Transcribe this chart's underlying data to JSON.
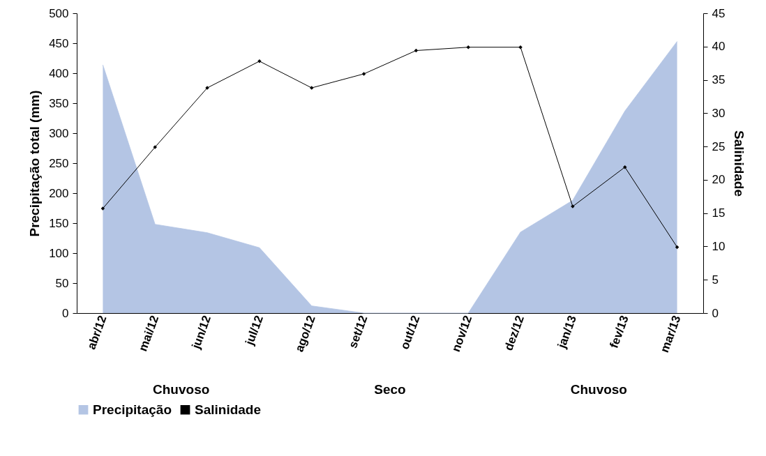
{
  "chart_data": {
    "type": "area",
    "xlabel": null,
    "ylabel": "Precipitação total  (mm)",
    "y2label": "Salinidade",
    "categories": [
      "abr/12",
      "mai/12",
      "jun/12",
      "jul/12",
      "ago/12",
      "set/12",
      "out/12",
      "nov/12",
      "dez/12",
      "jan/13",
      "fev/13",
      "mar/13"
    ],
    "series": [
      {
        "name": "Precipitação",
        "color": "#b4c5e4",
        "values": [
          414,
          148,
          134,
          109,
          12,
          0,
          0,
          0,
          135,
          188,
          337,
          453
        ]
      },
      {
        "name": "Salinidade",
        "type": "line",
        "axis": "y2",
        "color": "#000000",
        "marker": "diamond",
        "values": [
          15.7,
          24.9,
          33.8,
          37.8,
          33.8,
          35.9,
          39.4,
          39.9,
          39.9,
          16,
          21.9,
          9.9
        ]
      }
    ],
    "ylim": [
      0,
      500
    ],
    "yticks": [
      0,
      50,
      100,
      150,
      200,
      250,
      300,
      350,
      400,
      450,
      500
    ],
    "y2lim": [
      0,
      45
    ],
    "y2ticks": [
      0,
      5,
      10,
      15,
      20,
      25,
      30,
      35,
      40,
      45
    ],
    "annotations": [
      "Chuvoso",
      "Seco",
      "Chuvoso"
    ],
    "legend": "bottom"
  }
}
